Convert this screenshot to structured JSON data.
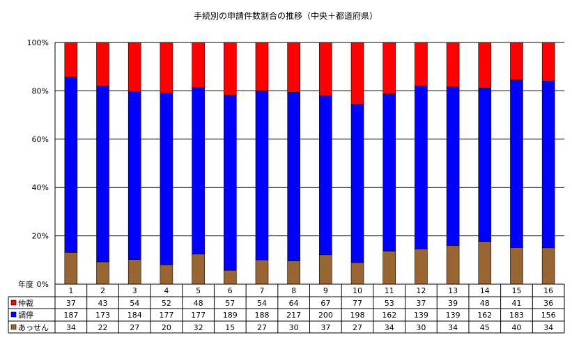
{
  "chart_data": {
    "type": "bar",
    "stacked": "percent",
    "title": "手続別の申請件数割合の推移（中央＋都道府県）",
    "corner_label": "年度",
    "categories": [
      "1",
      "2",
      "3",
      "4",
      "5",
      "6",
      "7",
      "8",
      "9",
      "10",
      "11",
      "12",
      "13",
      "14",
      "15",
      "16"
    ],
    "series": [
      {
        "name": "あっせん",
        "color": "#996633",
        "values": [
          34,
          22,
          27,
          20,
          32,
          15,
          27,
          30,
          37,
          27,
          34,
          30,
          34,
          45,
          40,
          34
        ]
      },
      {
        "name": "調停",
        "color": "#0000ff",
        "values": [
          187,
          173,
          184,
          177,
          177,
          189,
          188,
          217,
          200,
          198,
          162,
          139,
          139,
          162,
          183,
          156
        ]
      },
      {
        "name": "仲裁",
        "color": "#ff0000",
        "values": [
          37,
          43,
          54,
          52,
          48,
          57,
          54,
          64,
          67,
          77,
          53,
          37,
          39,
          48,
          41,
          36
        ]
      }
    ],
    "table_row_order": [
      "仲裁",
      "調停",
      "あっせん"
    ],
    "yticks": [
      "0%",
      "20%",
      "40%",
      "60%",
      "80%",
      "100%"
    ],
    "ylim": [
      0,
      100
    ],
    "grid": true,
    "legend": "data-table"
  }
}
